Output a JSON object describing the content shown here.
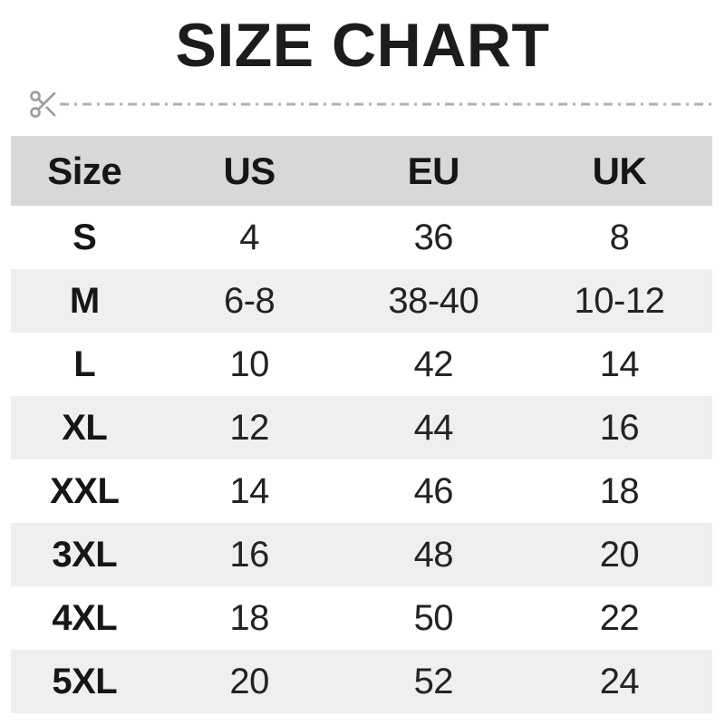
{
  "title": "SIZE CHART",
  "colors": {
    "header_bg": "#d8d8d8",
    "alt_row_bg": "#efefef",
    "text": "#1e1e1e",
    "cutline": "#b0b0b0",
    "scissors": "#9e9e9e"
  },
  "cut_line": {
    "icon": "scissors-icon",
    "style": "dash-dot"
  },
  "chart_data": {
    "type": "table",
    "title": "SIZE CHART",
    "columns": [
      "Size",
      "US",
      "EU",
      "UK"
    ],
    "rows": [
      [
        "S",
        "4",
        "36",
        "8"
      ],
      [
        "M",
        "6-8",
        "38-40",
        "10-12"
      ],
      [
        "L",
        "10",
        "42",
        "14"
      ],
      [
        "XL",
        "12",
        "44",
        "16"
      ],
      [
        "XXL",
        "14",
        "46",
        "18"
      ],
      [
        "3XL",
        "16",
        "48",
        "20"
      ],
      [
        "4XL",
        "18",
        "50",
        "22"
      ],
      [
        "5XL",
        "20",
        "52",
        "24"
      ]
    ]
  }
}
